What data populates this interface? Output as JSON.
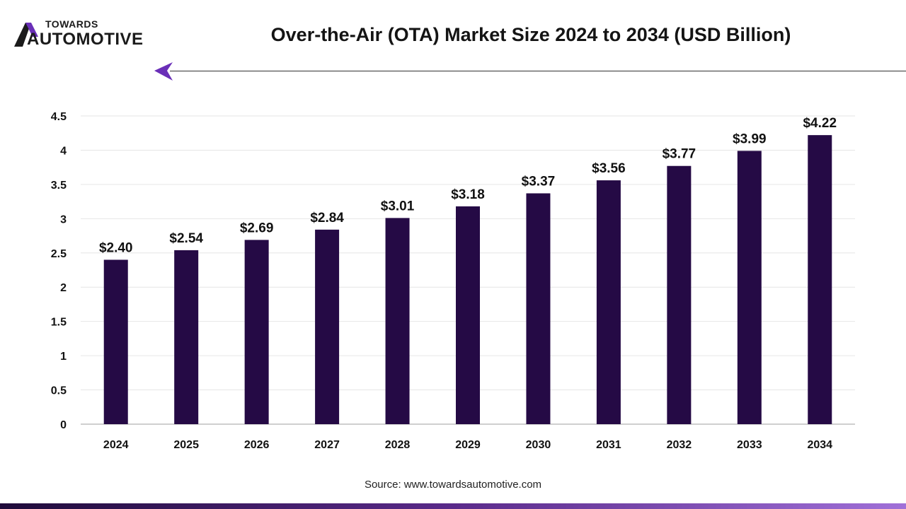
{
  "brand": {
    "top_text": "TOWARDS",
    "bottom_text": "AUTOMOTIVE",
    "accent_color": "#6a2fb8"
  },
  "source": "Source: www.towardsautomotive.com",
  "chart_data": {
    "type": "bar",
    "title": "Over-the-Air (OTA) Market Size 2024 to 2034 (USD Billion)",
    "xlabel": "",
    "ylabel": "",
    "categories": [
      "2024",
      "2025",
      "2026",
      "2027",
      "2028",
      "2029",
      "2030",
      "2031",
      "2032",
      "2033",
      "2034"
    ],
    "values": [
      2.4,
      2.54,
      2.69,
      2.84,
      3.01,
      3.18,
      3.37,
      3.56,
      3.77,
      3.99,
      4.22
    ],
    "data_labels": [
      "$2.40",
      "$2.54",
      "$2.69",
      "$2.84",
      "$3.01",
      "$3.18",
      "$3.37",
      "$3.56",
      "$3.77",
      "$3.99",
      "$4.22"
    ],
    "ylim": [
      0,
      4.5
    ],
    "yticks": [
      "0",
      "0.5",
      "1",
      "1.5",
      "2",
      "2.5",
      "3",
      "3.5",
      "4",
      "4.5"
    ],
    "ytick_values": [
      0,
      0.5,
      1,
      1.5,
      2,
      2.5,
      3,
      3.5,
      4,
      4.5
    ],
    "bar_color": "#250a45",
    "grid": true,
    "legend": "none"
  }
}
